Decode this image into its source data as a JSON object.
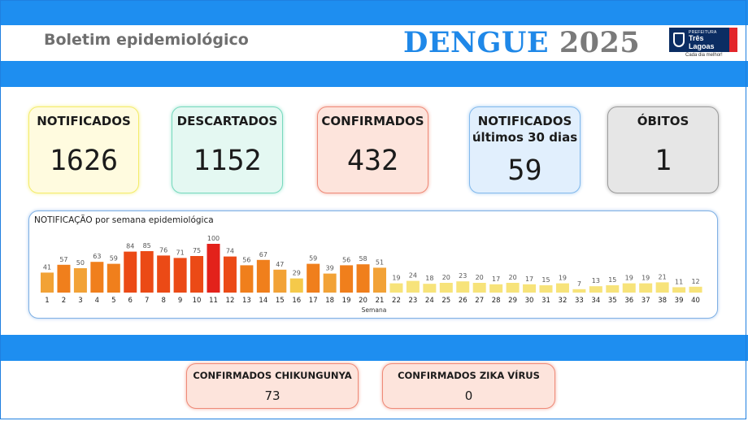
{
  "header": {
    "title": "Boletim epidemiológico",
    "dengue_word": "DENGUE",
    "year": "2025"
  },
  "logo": {
    "prefix": "PREFEITURA",
    "name_line1": "Três",
    "name_line2": "Lagoas",
    "slogan": "Cada dia melhor!"
  },
  "cards": {
    "notificados": {
      "label": "NOTIFICADOS",
      "value": "1626"
    },
    "descartados": {
      "label": "DESCARTADOS",
      "value": "1152"
    },
    "confirmados": {
      "label": "CONFIRMADOS",
      "value": "432"
    },
    "notificados30": {
      "label_line1": "NOTIFICADOS",
      "label_line2": "últimos 30 dias",
      "value": "59"
    },
    "obitos": {
      "label": "ÓBITOS",
      "value": "1"
    }
  },
  "bottom_cards": {
    "chikungunya": {
      "label": "CONFIRMADOS CHIKUNGUNYA",
      "value": "73"
    },
    "zika": {
      "label": "CONFIRMADOS ZIKA VÍRUS",
      "value": "0"
    }
  },
  "colors": {
    "band": "#1e8ef0",
    "bar_red": "#e3221b",
    "bar_redorange": "#eb4a16",
    "bar_orange": "#f07f1c",
    "bar_lightorange": "#f2a236",
    "bar_yellow": "#f5c94a",
    "bar_paleyellow": "#f7e37a"
  },
  "chart_data": {
    "type": "bar",
    "title": "NOTIFICAÇÃO por semana epidemiológica",
    "xlabel": "Semana",
    "ylabel": "",
    "categories": [
      "1",
      "2",
      "3",
      "4",
      "5",
      "6",
      "7",
      "8",
      "9",
      "10",
      "11",
      "12",
      "13",
      "14",
      "15",
      "16",
      "17",
      "18",
      "19",
      "20",
      "21",
      "22",
      "23",
      "24",
      "25",
      "26",
      "27",
      "28",
      "29",
      "30",
      "31",
      "32",
      "33",
      "34",
      "35",
      "36",
      "37",
      "38",
      "39",
      "40"
    ],
    "values": [
      41,
      57,
      50,
      63,
      59,
      84,
      85,
      76,
      71,
      75,
      100,
      74,
      56,
      67,
      47,
      29,
      59,
      39,
      56,
      58,
      51,
      19,
      24,
      18,
      20,
      23,
      20,
      17,
      20,
      17,
      15,
      19,
      7,
      13,
      15,
      19,
      19,
      21,
      11,
      12
    ],
    "ylim": [
      0,
      100
    ],
    "grid": false,
    "color_scale": "value-graded (yellow low to red high)"
  }
}
